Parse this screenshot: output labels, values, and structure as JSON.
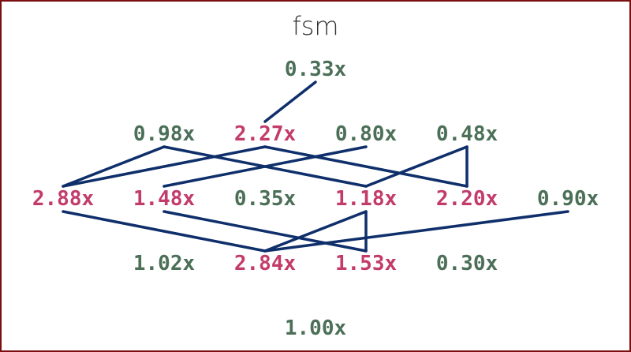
{
  "title": "fsm",
  "colors": {
    "faster": "#4b6f57",
    "slower": "#c23b6a",
    "edge": "#0f2f6b",
    "border": "#7a0f12"
  },
  "levels": [
    [
      {
        "label": "0.33x",
        "status": "faster"
      }
    ],
    [
      {
        "label": "0.98x",
        "status": "faster"
      },
      {
        "label": "2.27x",
        "status": "slower"
      },
      {
        "label": "0.80x",
        "status": "faster"
      },
      {
        "label": "0.48x",
        "status": "faster"
      }
    ],
    [
      {
        "label": "2.88x",
        "status": "slower"
      },
      {
        "label": "1.48x",
        "status": "slower"
      },
      {
        "label": "0.35x",
        "status": "faster"
      },
      {
        "label": "1.18x",
        "status": "slower"
      },
      {
        "label": "2.20x",
        "status": "slower"
      },
      {
        "label": "0.90x",
        "status": "faster"
      }
    ],
    [
      {
        "label": "1.02x",
        "status": "faster"
      },
      {
        "label": "2.84x",
        "status": "slower"
      },
      {
        "label": "1.53x",
        "status": "slower"
      },
      {
        "label": "0.30x",
        "status": "faster"
      }
    ],
    [
      {
        "label": "1.00x",
        "status": "faster"
      }
    ]
  ],
  "edges": [
    [
      [
        0,
        0
      ],
      [
        1,
        1
      ]
    ],
    [
      [
        1,
        0
      ],
      [
        2,
        0
      ]
    ],
    [
      [
        1,
        0
      ],
      [
        2,
        3
      ]
    ],
    [
      [
        1,
        1
      ],
      [
        2,
        0
      ]
    ],
    [
      [
        1,
        1
      ],
      [
        2,
        4
      ]
    ],
    [
      [
        1,
        2
      ],
      [
        2,
        1
      ]
    ],
    [
      [
        1,
        3
      ],
      [
        2,
        3
      ]
    ],
    [
      [
        1,
        3
      ],
      [
        2,
        4
      ]
    ],
    [
      [
        2,
        0
      ],
      [
        3,
        1
      ]
    ],
    [
      [
        2,
        1
      ],
      [
        3,
        2
      ]
    ],
    [
      [
        2,
        3
      ],
      [
        3,
        1
      ]
    ],
    [
      [
        2,
        3
      ],
      [
        3,
        2
      ]
    ],
    [
      [
        2,
        5
      ],
      [
        3,
        1
      ]
    ]
  ]
}
